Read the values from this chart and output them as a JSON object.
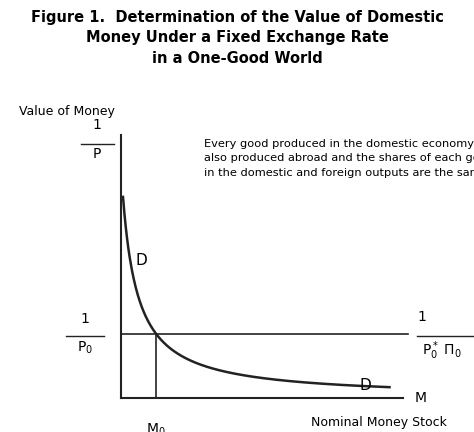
{
  "title_line1": "Figure 1.  Determination of the Value of Domestic",
  "title_line2": "Money Under a Fixed Exchange Rate",
  "title_line3": "in a One-Good World",
  "ylabel_text": "Value of Money",
  "xlabel_text": "Nominal Money Stock",
  "annotation": "Every good produced in the domestic economy is\nalso produced abroad and the shares of each good\nin the domestic and foreign outputs are the same.",
  "bg_color": "#ffffff",
  "line_color": "#222222",
  "curve_color": "#222222",
  "text_color": "#000000",
  "figsize": [
    4.74,
    4.32
  ],
  "dpi": 100,
  "curve_k": 4.0,
  "x_min": 0.5,
  "x_max": 11.0,
  "y_min": 0.0,
  "y_max": 9.0,
  "y0_data": 2.2,
  "x_start": 0.58
}
